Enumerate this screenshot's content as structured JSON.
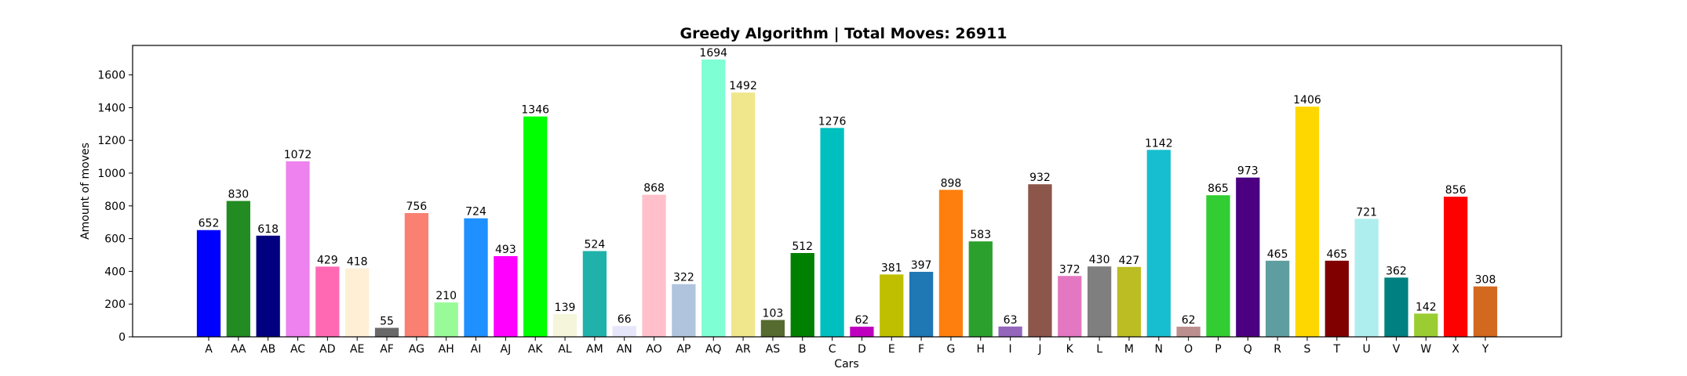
{
  "chart_data": {
    "type": "bar",
    "title": "Greedy Algorithm | Total Moves: 26911",
    "xlabel": "Cars",
    "ylabel": "Amount of moves",
    "ylim": [
      0,
      1780
    ],
    "yticks": [
      0,
      200,
      400,
      600,
      800,
      1000,
      1200,
      1400,
      1600
    ],
    "ytick_labels": [
      "0",
      "200",
      "400",
      "600",
      "800",
      "1000",
      "1200",
      "1400",
      "1600"
    ],
    "grid": false,
    "categories": [
      "A",
      "AA",
      "AB",
      "AC",
      "AD",
      "AE",
      "AF",
      "AG",
      "AH",
      "AI",
      "AJ",
      "AK",
      "AL",
      "AM",
      "AN",
      "AO",
      "AP",
      "AQ",
      "AR",
      "AS",
      "B",
      "C",
      "D",
      "E",
      "F",
      "G",
      "H",
      "I",
      "J",
      "K",
      "L",
      "M",
      "N",
      "O",
      "P",
      "Q",
      "R",
      "S",
      "T",
      "U",
      "V",
      "W",
      "X",
      "Y"
    ],
    "values": [
      652,
      830,
      618,
      1072,
      429,
      418,
      55,
      756,
      210,
      724,
      493,
      1346,
      139,
      524,
      66,
      868,
      322,
      1694,
      1492,
      103,
      512,
      1276,
      62,
      381,
      397,
      898,
      583,
      63,
      932,
      372,
      430,
      427,
      1142,
      62,
      865,
      973,
      465,
      1406,
      465,
      721,
      362,
      142,
      856,
      308
    ],
    "value_labels": [
      "652",
      "830",
      "618",
      "1072",
      "429",
      "418",
      "55",
      "756",
      "210",
      "724",
      "493",
      "1346",
      "139",
      "524",
      "66",
      "868",
      "322",
      "1694",
      "1492",
      "103",
      "512",
      "1276",
      "62",
      "381",
      "397",
      "898",
      "583",
      "63",
      "932",
      "372",
      "430",
      "427",
      "1142",
      "62",
      "865",
      "973",
      "465",
      "1406",
      "465",
      "721",
      "362",
      "142",
      "856",
      "308"
    ],
    "colors": [
      "#0000ff",
      "#228b22",
      "#000080",
      "#ee82ee",
      "#ff69b4",
      "#ffefd5",
      "#696969",
      "#fa8072",
      "#98fb98",
      "#1e90ff",
      "#ff00ff",
      "#00ff00",
      "#f5f5dc",
      "#20b2aa",
      "#e6e6fa",
      "#ffc0cb",
      "#b0c4de",
      "#7fffd4",
      "#f0e68c",
      "#556b2f",
      "#008000",
      "#00bfbf",
      "#bf00bf",
      "#bfbf00",
      "#1f77b4",
      "#ff7f0e",
      "#2ca02c",
      "#9467bd",
      "#8c564b",
      "#e377c2",
      "#7f7f7f",
      "#bcbd22",
      "#17becf",
      "#bc8f8f",
      "#32cd32",
      "#4b0082",
      "#5f9ea0",
      "#ffd700",
      "#800000",
      "#afeeee",
      "#008080",
      "#9acd32",
      "#ff0000",
      "#d2691e"
    ]
  }
}
